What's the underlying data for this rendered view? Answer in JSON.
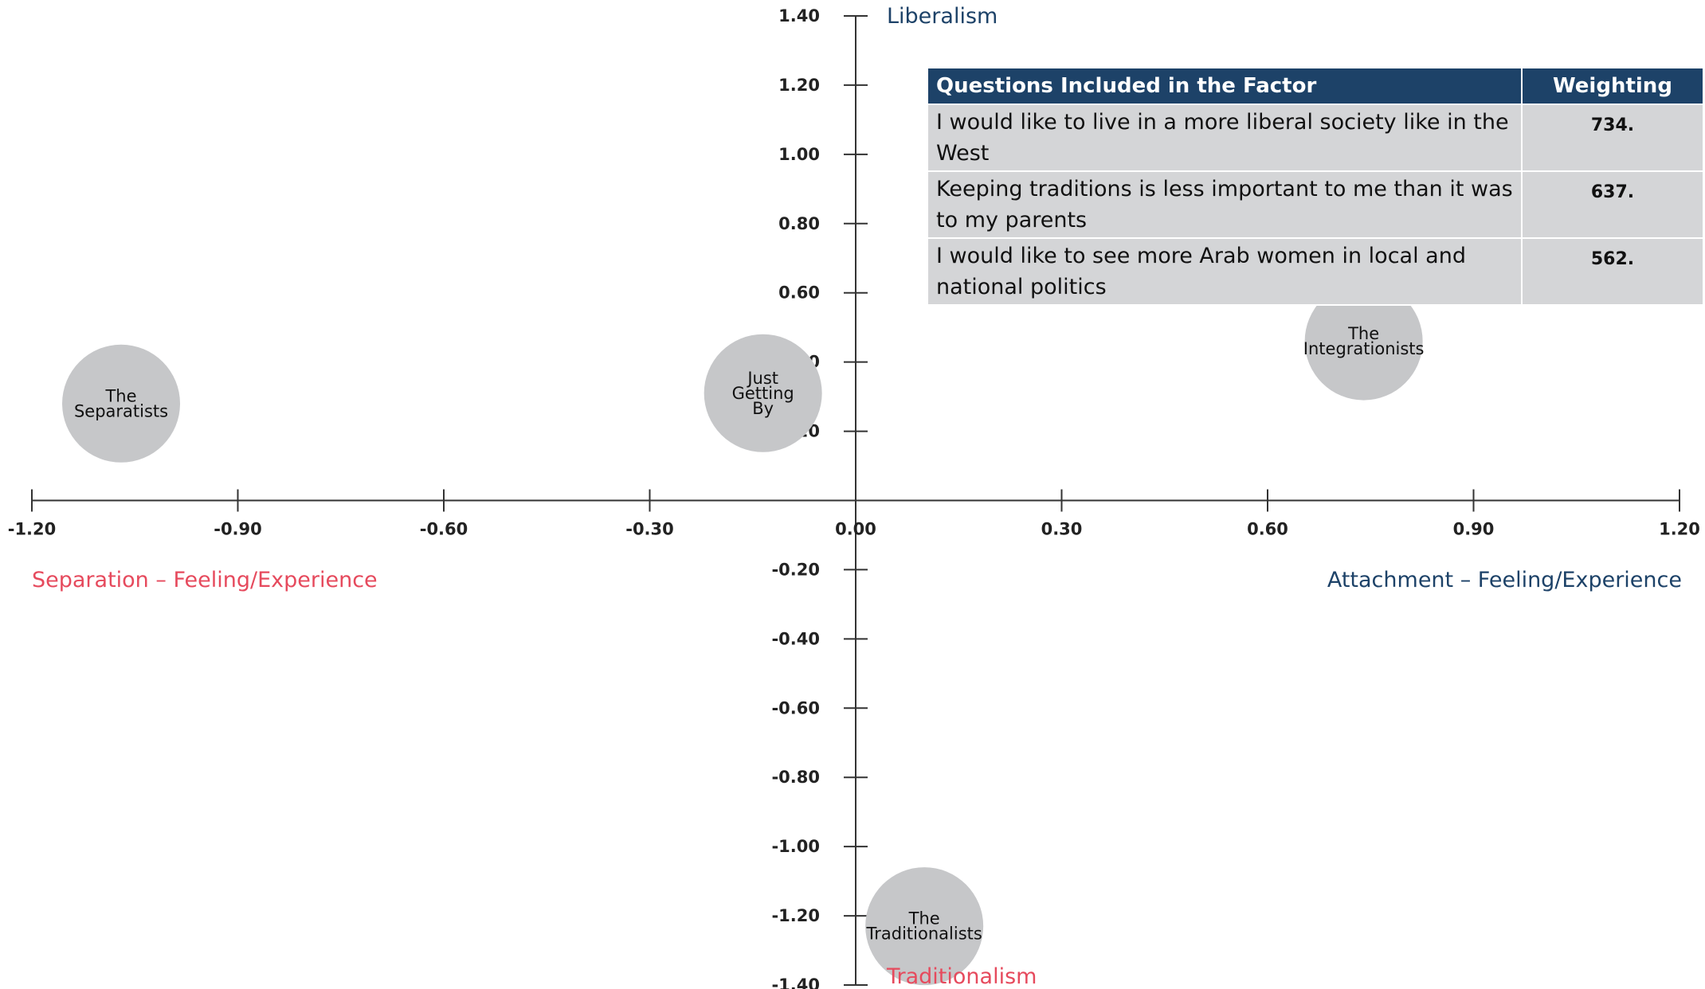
{
  "chart_data": {
    "type": "scatter",
    "xlim": [
      -1.2,
      1.2
    ],
    "ylim": [
      -1.4,
      1.4
    ],
    "x_ticks": [
      "-1.20",
      "-0.90",
      "-0.60",
      "-0.30",
      "0.00",
      "0.30",
      "0.60",
      "0.90",
      "1.20"
    ],
    "y_ticks": [
      "1.40",
      "1.20",
      "1.00",
      "0.80",
      "0.60",
      "0.40",
      "0.20",
      "-0.20",
      "-0.40",
      "-0.60",
      "-0.80",
      "-1.00",
      "-1.20",
      "-1.40"
    ],
    "x_labels": {
      "left": "Separation – Feeling/Experience",
      "right": "Attachment – Feeling/Experience"
    },
    "y_labels": {
      "top": "Liberalism",
      "bottom": "Traditionalism"
    },
    "points": [
      {
        "label": "The Separatists",
        "lines": [
          "The",
          "Separatists"
        ],
        "x": -1.07,
        "y": 0.28
      },
      {
        "label": "Just Getting By",
        "lines": [
          "Just",
          "Getting",
          "By"
        ],
        "x": -0.135,
        "y": 0.31
      },
      {
        "label": "The Integrationists",
        "lines": [
          "The",
          "Integrationists"
        ],
        "x": 0.74,
        "y": 0.46
      },
      {
        "label": "The Traditionalists",
        "lines": [
          "The",
          "Traditionalists"
        ],
        "x": 0.1,
        "y": -1.23
      }
    ],
    "colors": {
      "axis": "#333333",
      "bubble": "#c6c7c9",
      "negative_label": "#e64a5d",
      "positive_label": "#1d4268"
    }
  },
  "table": {
    "headers": [
      "Questions Included in the Factor",
      "Weighting"
    ],
    "rows": [
      {
        "question": "I would like to live in a more liberal society like in the West",
        "weighting": "734."
      },
      {
        "question": "Keeping traditions is less important to me than it was to my parents",
        "weighting": "637."
      },
      {
        "question": "I would like to see more Arab women in local and national politics",
        "weighting": "562."
      }
    ]
  }
}
